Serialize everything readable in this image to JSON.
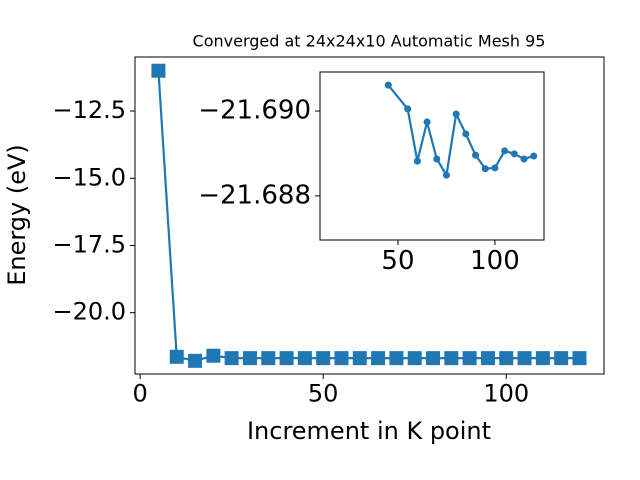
{
  "chart_data": [
    {
      "type": "line",
      "title": "Converged at 24x24x10 Automatic Mesh 95",
      "x_label": "Increment in K point",
      "y_label": "Energy (eV)",
      "x": [
        5,
        10,
        15,
        20,
        25,
        30,
        35,
        40,
        45,
        50,
        55,
        60,
        65,
        70,
        75,
        80,
        85,
        90,
        95,
        100,
        105,
        110,
        115,
        120
      ],
      "series": [
        {
          "color": "#1f77b4",
          "marker": "square",
          "values": [
            -11.0,
            -21.64,
            -21.79,
            -21.6,
            -21.69,
            -21.69,
            -21.69,
            -21.69,
            -21.69,
            -21.69,
            -21.69,
            -21.69,
            -21.69,
            -21.69,
            -21.69,
            -21.69,
            -21.69,
            -21.69,
            -21.69,
            -21.69,
            -21.69,
            -21.69,
            -21.69,
            -21.69
          ]
        }
      ],
      "xlim": [
        -1.4,
        126.7
      ],
      "xticks": [
        0,
        50,
        100
      ],
      "ylim": [
        -22.28,
        -10.49
      ],
      "yticks": [
        {
          "value": -20,
          "label": "−20.0"
        },
        {
          "value": -17.5,
          "label": "−17.5"
        },
        {
          "value": -15,
          "label": "−15.0"
        },
        {
          "value": -12.5,
          "label": "−12.5"
        }
      ]
    },
    {
      "type": "line",
      "x": [
        45,
        55,
        60,
        65,
        70,
        75,
        80,
        85,
        90,
        95,
        100,
        105,
        110,
        115,
        120
      ],
      "series": [
        {
          "color": "#1f77b4",
          "marker": "circle",
          "values": [
            -21.69061,
            -21.69005,
            -21.68882,
            -21.68974,
            -21.68887,
            -21.68849,
            -21.68993,
            -21.68946,
            -21.68896,
            -21.68864,
            -21.68866,
            -21.68906,
            -21.68899,
            -21.68887,
            -21.68894
          ]
        }
      ],
      "xlim": [
        9.8,
        125.3
      ],
      "xticks": [
        50,
        100
      ],
      "ylim": [
        -21.68696,
        -21.69092
      ],
      "yticks": [
        {
          "value": -21.69,
          "label": "−21.690"
        },
        {
          "value": -21.688,
          "label": "−21.688"
        }
      ]
    }
  ]
}
